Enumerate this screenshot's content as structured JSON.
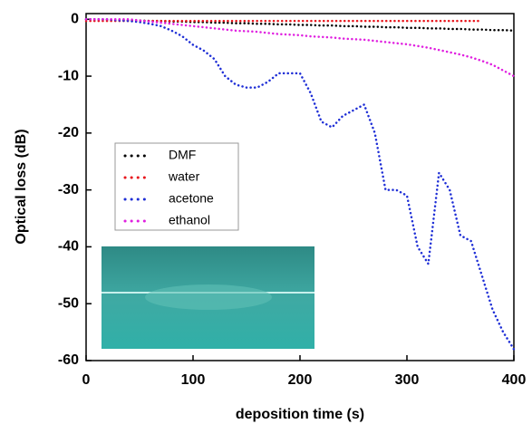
{
  "chart_data": {
    "type": "line",
    "xlabel": "deposition time (s)",
    "ylabel": "Optical  loss (dB)",
    "x": [
      0,
      10,
      20,
      30,
      40,
      50,
      60,
      70,
      80,
      90,
      100,
      110,
      120,
      130,
      140,
      150,
      160,
      170,
      180,
      190,
      200,
      210,
      220,
      230,
      240,
      250,
      260,
      270,
      280,
      290,
      300,
      310,
      320,
      330,
      340,
      350,
      360,
      370,
      380,
      390,
      400
    ],
    "xlim": [
      0,
      400
    ],
    "xticks": [
      0,
      100,
      200,
      300,
      400
    ],
    "ylim": [
      -60,
      1
    ],
    "yticks": [
      0,
      -10,
      -20,
      -30,
      -40,
      -50,
      -60
    ],
    "series": [
      {
        "name": "DMF",
        "color": "#000000",
        "values": [
          0,
          0,
          -0.1,
          -0.1,
          -0.2,
          -0.2,
          -0.3,
          -0.3,
          -0.4,
          -0.4,
          -0.5,
          -0.5,
          -0.6,
          -0.6,
          -0.7,
          -0.7,
          -0.8,
          -0.8,
          -0.9,
          -0.9,
          -1,
          -1,
          -1.1,
          -1.1,
          -1.2,
          -1.2,
          -1.3,
          -1.3,
          -1.4,
          -1.4,
          -1.5,
          -1.5,
          -1.6,
          -1.6,
          -1.7,
          -1.7,
          -1.8,
          -1.8,
          -1.9,
          -1.9,
          -2
        ]
      },
      {
        "name": "water",
        "color": "#e8161c",
        "values": [
          -0.3,
          -0.3,
          -0.3,
          -0.3,
          -0.3,
          -0.3,
          -0.3,
          -0.3,
          -0.3,
          -0.3,
          -0.3,
          -0.3,
          -0.3,
          -0.3,
          -0.3,
          -0.3,
          -0.3,
          -0.3,
          -0.3,
          -0.3,
          -0.3,
          -0.3,
          -0.3,
          -0.3,
          -0.3,
          -0.3,
          -0.3,
          -0.3,
          -0.3,
          -0.3,
          -0.3,
          -0.3,
          -0.3,
          -0.3,
          -0.3,
          -0.3,
          -0.3,
          -0.3,
          null,
          null,
          null
        ]
      },
      {
        "name": "acetone",
        "color": "#1f2fd6",
        "values": [
          0,
          0,
          0,
          -0.2,
          -0.3,
          -0.5,
          -0.8,
          -1.2,
          -2,
          -3,
          -4.5,
          -5.5,
          -7,
          -10,
          -11.5,
          -12,
          -12,
          -11,
          -9.5,
          -9.5,
          -9.5,
          -13,
          -18,
          -19,
          -17,
          -16,
          -15,
          -20,
          -30,
          -30,
          -31,
          -40,
          -43,
          -27,
          -30,
          -38,
          -39,
          -45,
          -51,
          -55,
          -58
        ]
      },
      {
        "name": "ethanol",
        "color": "#e020e0",
        "values": [
          0,
          0,
          0,
          0,
          0,
          -0.2,
          -0.4,
          -0.6,
          -0.8,
          -1,
          -1.2,
          -1.4,
          -1.6,
          -1.8,
          -2,
          -2.1,
          -2.2,
          -2.4,
          -2.6,
          -2.7,
          -2.8,
          -3,
          -3.1,
          -3.2,
          -3.4,
          -3.5,
          -3.6,
          -3.8,
          -4,
          -4.2,
          -4.4,
          -4.7,
          -5,
          -5.4,
          -5.8,
          -6.2,
          -6.7,
          -7.3,
          -8,
          -9,
          -10
        ]
      }
    ]
  }
}
